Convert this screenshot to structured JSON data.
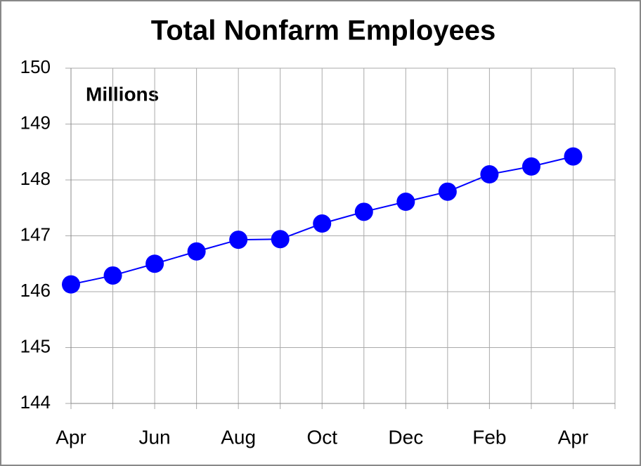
{
  "chart_data": {
    "type": "line",
    "title": "Total Nonfarm Employees",
    "annotation": "Millions",
    "categories": [
      "Apr",
      null,
      "Jun",
      null,
      "Aug",
      null,
      "Oct",
      null,
      "Dec",
      null,
      "Feb",
      null,
      "Apr"
    ],
    "values": [
      146.13,
      146.29,
      146.5,
      146.72,
      146.93,
      146.94,
      147.22,
      147.43,
      147.61,
      147.79,
      148.1,
      148.24,
      148.42
    ],
    "color": "#0000ff",
    "ylim": [
      144,
      150
    ],
    "yticks": [
      144,
      145,
      146,
      147,
      148,
      149,
      150
    ],
    "grid": true
  }
}
